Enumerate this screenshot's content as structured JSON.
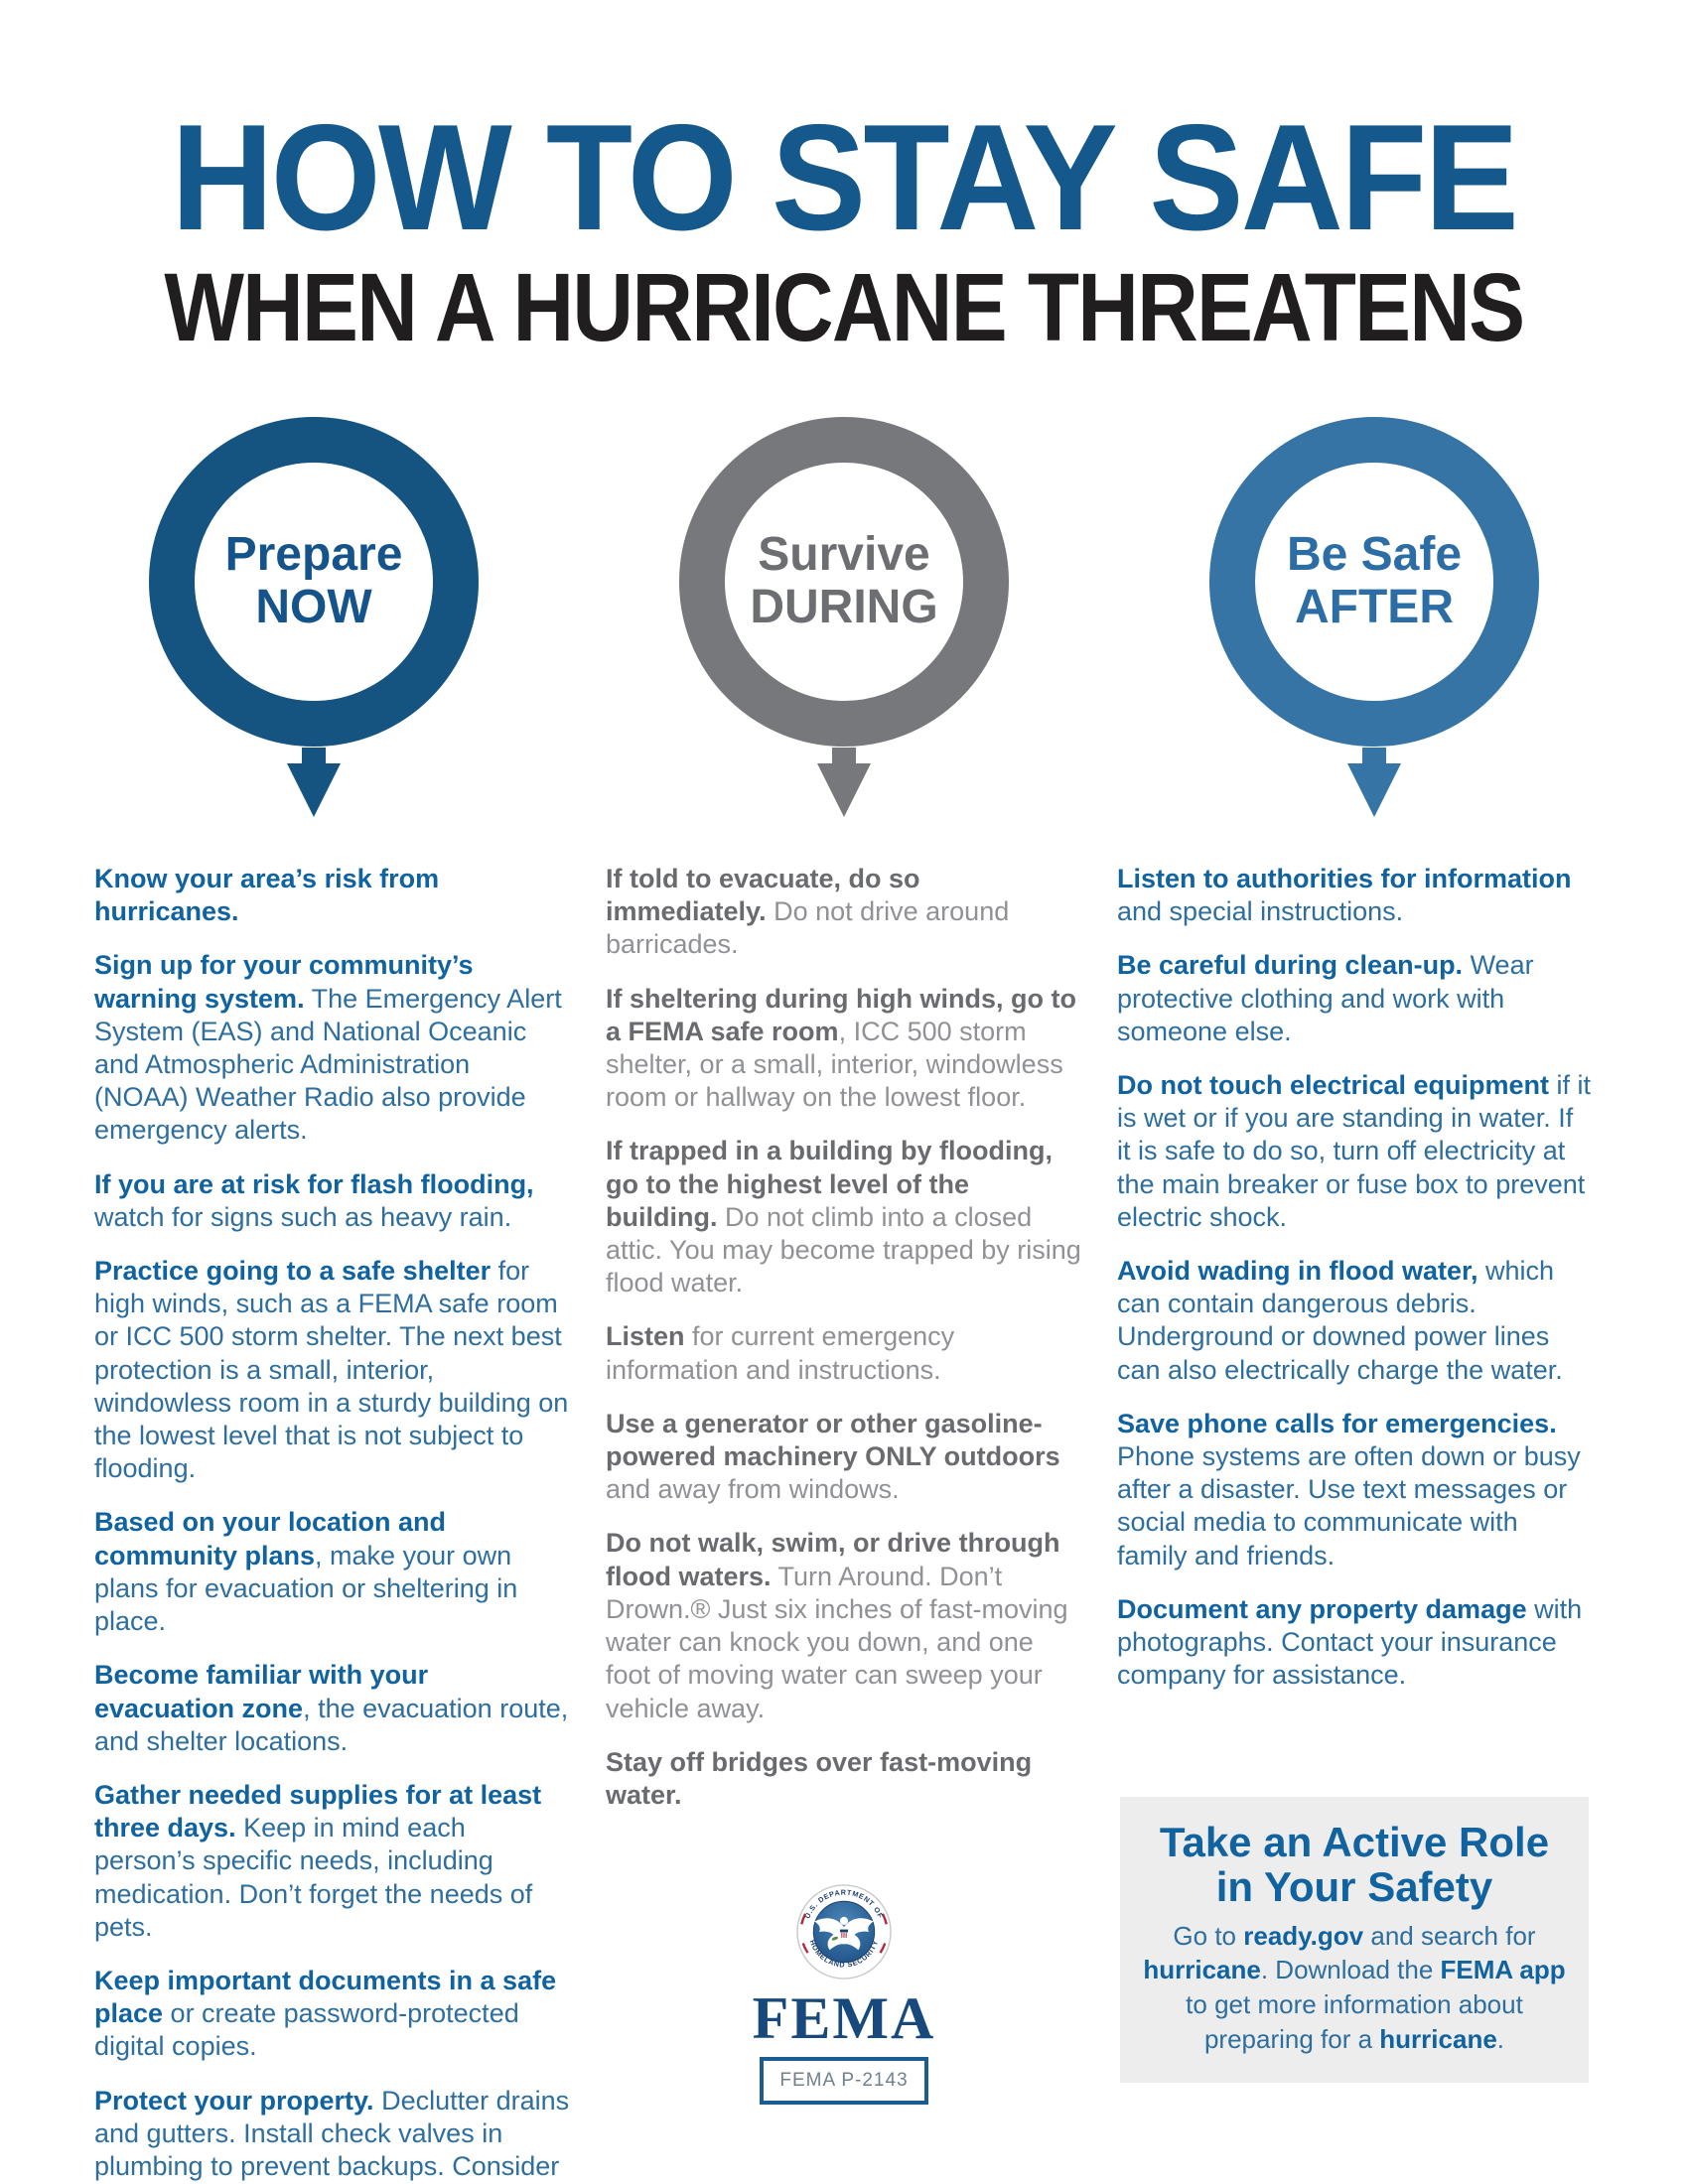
{
  "title": "HOW TO STAY SAFE",
  "subtitle": "WHEN A HURRICANE THREATENS",
  "colors": {
    "title_blue": "#15588c",
    "subtitle_black": "#211e1f",
    "column_blue_bold": "#1163a0",
    "column_blue_text": "#2d6e9e",
    "column_gray_bold": "#6a6b6e",
    "column_gray_text": "#8f9194",
    "callout_background": "#ededee",
    "fema_navy": "#17497c"
  },
  "badges": [
    {
      "line1": "Prepare",
      "line2": "NOW",
      "ring": "#155380",
      "text": "#14548a"
    },
    {
      "line1": "Survive",
      "line2": "DURING",
      "ring": "#77787b",
      "text": "#6d6e71"
    },
    {
      "line1": "Be Safe",
      "line2": "AFTER",
      "ring": "#3574a4",
      "text": "#2d6da5"
    }
  ],
  "columns": [
    {
      "name": "prepare-now",
      "theme": "blue",
      "items": [
        {
          "bold": "Know your area’s risk from hurricanes.",
          "text": ""
        },
        {
          "bold": "Sign up for your community’s warning system.",
          "text": " The Emergency Alert System (EAS) and National Oceanic and Atmospheric Administration (NOAA) Weather Radio also provide emergency alerts."
        },
        {
          "bold": "If you are at risk for flash flooding,",
          "text": " watch for signs such as heavy rain."
        },
        {
          "bold": "Practice going to a safe shelter",
          "text": " for high winds, such as a FEMA safe room or ICC 500 storm shelter. The next best protection is a small, interior, windowless room in a sturdy building on the lowest level that is not subject to flooding."
        },
        {
          "bold": "Based on your location and community plans",
          "text": ", make your own plans for evacuation or sheltering in place."
        },
        {
          "bold": "Become familiar with your evacuation zone",
          "text": ", the evacuation route, and shelter locations."
        },
        {
          "bold": "Gather needed supplies for at least three days.",
          "text": " Keep in mind each person’s specific needs, including medication. Don’t forget the needs of pets."
        },
        {
          "bold": "Keep important documents in a safe place",
          "text": " or create password-protected digital copies."
        },
        {
          "bold": "Protect your property.",
          "text": " Declutter drains and gutters. Install check valves in plumbing to prevent backups. Consider hurricane shutters. Review insurance policies."
        }
      ]
    },
    {
      "name": "survive-during",
      "theme": "gray",
      "items": [
        {
          "bold": "If told to evacuate, do so immediately.",
          "text": " Do not drive around barricades."
        },
        {
          "bold": "If sheltering during high winds, go to a FEMA safe room",
          "text": ", ICC 500 storm shelter, or a small, interior, windowless room or hallway on the lowest floor."
        },
        {
          "bold": "If trapped in a building by flooding, go to the highest level of the building.",
          "text": " Do not climb into a closed attic. You may become trapped by rising flood water."
        },
        {
          "bold": "Listen",
          "text": " for current emergency information and instructions."
        },
        {
          "bold": "Use a generator or other gasoline-powered machinery ONLY outdoors",
          "text": " and away from windows."
        },
        {
          "bold": "Do not walk, swim, or drive through flood waters.",
          "text": " Turn Around. Don’t Drown.® Just six inches of fast-moving water can knock you down, and one foot of moving water can sweep your vehicle away."
        },
        {
          "bold": "Stay off bridges over fast-moving water.",
          "text": ""
        }
      ]
    },
    {
      "name": "be-safe-after",
      "theme": "blue",
      "items": [
        {
          "bold": "Listen to authorities for information",
          "text": " and special instructions."
        },
        {
          "bold": "Be careful during clean-up.",
          "text": " Wear protective clothing and work with someone else."
        },
        {
          "bold": "Do not touch electrical equipment",
          "text": " if it is wet or if you are standing in water. If it is safe to do so, turn off electricity at the main breaker or fuse box to prevent electric shock."
        },
        {
          "bold": "Avoid wading in flood water,",
          "text": " which can contain dangerous debris. Underground or downed power lines can also electrically charge the water."
        },
        {
          "bold": "Save phone calls for emergencies.",
          "text": " Phone systems are often down or busy after a disaster. Use text messages or social media to communicate with family and friends."
        },
        {
          "bold": "Document any property damage",
          "text": " with photographs. Contact your insurance company for assistance."
        }
      ]
    }
  ],
  "callout": {
    "title_line1": "Take an Active Role",
    "title_line2": "in Your Safety",
    "segments": [
      {
        "text": "Go to ",
        "bold": false
      },
      {
        "text": "ready.gov",
        "bold": true
      },
      {
        "text": " and search for ",
        "bold": false
      },
      {
        "text": "hurricane",
        "bold": true
      },
      {
        "text": ". Download the ",
        "bold": false
      },
      {
        "text": "FEMA app",
        "bold": true
      },
      {
        "text": " to get more information about preparing for a ",
        "bold": false
      },
      {
        "text": "hurricane",
        "bold": true
      },
      {
        "text": ".",
        "bold": false
      }
    ]
  },
  "footer": {
    "wordmark": "FEMA",
    "publication": "FEMA P-2143",
    "seal_text_top": "U.S. DEPARTMENT OF",
    "seal_text_bottom": "HOMELAND SECURITY"
  }
}
